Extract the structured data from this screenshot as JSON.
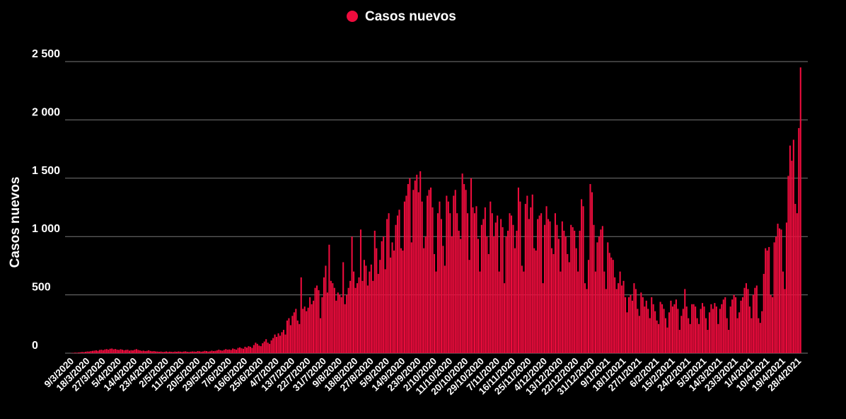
{
  "chart_data": {
    "type": "bar",
    "ylabel": "Casos nuevos",
    "categories": [
      "9/3/2020",
      null,
      null,
      null,
      null,
      null,
      null,
      null,
      null,
      "18/3/2020",
      null,
      null,
      null,
      null,
      null,
      null,
      null,
      null,
      "27/3/2020",
      null,
      null,
      null,
      null,
      null,
      null,
      null,
      null,
      "5/4/2020",
      null,
      null,
      null,
      null,
      null,
      null,
      null,
      null,
      "14/4/2020",
      null,
      null,
      null,
      null,
      null,
      null,
      null,
      null,
      "23/4/2020",
      null,
      null,
      null,
      null,
      null,
      null,
      null,
      null,
      "2/5/2020",
      null,
      null,
      null,
      null,
      null,
      null,
      null,
      null,
      "11/5/2020",
      null,
      null,
      null,
      null,
      null,
      null,
      null,
      null,
      "20/5/2020",
      null,
      null,
      null,
      null,
      null,
      null,
      null,
      null,
      "29/5/2020",
      null,
      null,
      null,
      null,
      null,
      null,
      null,
      null,
      "7/6/2020",
      null,
      null,
      null,
      null,
      null,
      null,
      null,
      null,
      "16/6/2020",
      null,
      null,
      null,
      null,
      null,
      null,
      null,
      null,
      "25/6/2020",
      null,
      null,
      null,
      null,
      null,
      null,
      null,
      null,
      "4/7/2020",
      null,
      null,
      null,
      null,
      null,
      null,
      null,
      null,
      "13/7/2020",
      null,
      null,
      null,
      null,
      null,
      null,
      null,
      null,
      "22/7/2020",
      null,
      null,
      null,
      null,
      null,
      null,
      null,
      null,
      "31/7/2020",
      null,
      null,
      null,
      null,
      null,
      null,
      null,
      null,
      "9/8/2020",
      null,
      null,
      null,
      null,
      null,
      null,
      null,
      null,
      "18/8/2020",
      null,
      null,
      null,
      null,
      null,
      null,
      null,
      null,
      "27/8/2020",
      null,
      null,
      null,
      null,
      null,
      null,
      null,
      null,
      "5/9/2020",
      null,
      null,
      null,
      null,
      null,
      null,
      null,
      null,
      "14/9/2020",
      null,
      null,
      null,
      null,
      null,
      null,
      null,
      null,
      "23/9/2020",
      null,
      null,
      null,
      null,
      null,
      null,
      null,
      null,
      "2/10/2020",
      null,
      null,
      null,
      null,
      null,
      null,
      null,
      null,
      "11/10/2020",
      null,
      null,
      null,
      null,
      null,
      null,
      null,
      null,
      "20/10/2020",
      null,
      null,
      null,
      null,
      null,
      null,
      null,
      null,
      "29/10/2020",
      null,
      null,
      null,
      null,
      null,
      null,
      null,
      null,
      "7/11/2020",
      null,
      null,
      null,
      null,
      null,
      null,
      null,
      null,
      "16/11/2020",
      null,
      null,
      null,
      null,
      null,
      null,
      null,
      null,
      "25/11/2020",
      null,
      null,
      null,
      null,
      null,
      null,
      null,
      null,
      "4/12/2020",
      null,
      null,
      null,
      null,
      null,
      null,
      null,
      null,
      "13/12/2020",
      null,
      null,
      null,
      null,
      null,
      null,
      null,
      null,
      "22/12/2020",
      null,
      null,
      null,
      null,
      null,
      null,
      null,
      null,
      "31/12/2020",
      null,
      null,
      null,
      null,
      null,
      null,
      null,
      null,
      "9/1/2021",
      null,
      null,
      null,
      null,
      null,
      null,
      null,
      null,
      "18/1/2021",
      null,
      null,
      null,
      null,
      null,
      null,
      null,
      null,
      "27/1/2021",
      null,
      null,
      null,
      null,
      null,
      null,
      null,
      null,
      null,
      "6/2/2021",
      null,
      null,
      null,
      null,
      null,
      null,
      null,
      null,
      "15/2/2021",
      null,
      null,
      null,
      null,
      null,
      null,
      null,
      null,
      "24/2/2021",
      null,
      null,
      null,
      null,
      null,
      null,
      null,
      null,
      "5/3/2021",
      null,
      null,
      null,
      null,
      null,
      null,
      null,
      null,
      "14/3/2021",
      null,
      null,
      null,
      null,
      null,
      null,
      null,
      null,
      "23/3/2021",
      null,
      null,
      null,
      null,
      null,
      null,
      null,
      null,
      "1/4/2021",
      null,
      null,
      null,
      null,
      null,
      null,
      null,
      null,
      "10/4/2021",
      null,
      null,
      null,
      null,
      null,
      null,
      null,
      null,
      "19/4/2021",
      null,
      null,
      null,
      null,
      null,
      null,
      null,
      null,
      "28/4/2021",
      null
    ],
    "series": [
      {
        "name": "Casos nuevos",
        "color": "#ee0c3d",
        "values": [
          2,
          3,
          5,
          4,
          6,
          8,
          10,
          9,
          12,
          15,
          14,
          18,
          20,
          22,
          25,
          20,
          28,
          30,
          26,
          32,
          35,
          30,
          38,
          40,
          33,
          36,
          30,
          28,
          34,
          30,
          25,
          28,
          30,
          22,
          26,
          24,
          30,
          35,
          28,
          24,
          20,
          22,
          18,
          20,
          25,
          19,
          16,
          18,
          15,
          14,
          12,
          14,
          10,
          12,
          15,
          11,
          13,
          12,
          10,
          14,
          12,
          15,
          13,
          11,
          14,
          16,
          12,
          10,
          13,
          15,
          14,
          12,
          18,
          16,
          13,
          15,
          20,
          18,
          14,
          16,
          22,
          18,
          20,
          24,
          30,
          25,
          22,
          28,
          35,
          30,
          32,
          28,
          40,
          35,
          30,
          45,
          50,
          42,
          38,
          55,
          48,
          60,
          55,
          45,
          70,
          90,
          80,
          65,
          60,
          85,
          100,
          120,
          90,
          80,
          110,
          130,
          160,
          140,
          170,
          150,
          180,
          200,
          160,
          280,
          300,
          240,
          320,
          350,
          380,
          280,
          250,
          650,
          380,
          400,
          360,
          390,
          480,
          420,
          450,
          560,
          580,
          540,
          300,
          480,
          650,
          750,
          520,
          930,
          620,
          600,
          560,
          450,
          520,
          500,
          480,
          780,
          420,
          500,
          560,
          620,
          1000,
          700,
          560,
          600,
          650,
          1060,
          620,
          800,
          750,
          580,
          700,
          760,
          620,
          1050,
          900,
          680,
          800,
          960,
          1000,
          720,
          1150,
          1200,
          820,
          950,
          880,
          1100,
          1180,
          1230,
          900,
          880,
          1300,
          1350,
          1450,
          1500,
          950,
          1400,
          1480,
          1530,
          1380,
          1560,
          1300,
          900,
          1000,
          1350,
          1400,
          1420,
          1250,
          850,
          700,
          1200,
          1300,
          1150,
          920,
          750,
          1350,
          1300,
          1200,
          1000,
          1350,
          1400,
          1200,
          1050,
          980,
          1540,
          1450,
          1400,
          1200,
          800,
          1500,
          1250,
          1200,
          1260,
          980,
          700,
          1100,
          1150,
          1250,
          1000,
          850,
          1300,
          1200,
          1000,
          1120,
          1180,
          700,
          1150,
          1080,
          600,
          1000,
          1050,
          1200,
          1180,
          1100,
          900,
          1050,
          1420,
          1300,
          750,
          700,
          1280,
          1350,
          1150,
          1250,
          1360,
          900,
          880,
          1150,
          1180,
          1200,
          600,
          1100,
          1260,
          1150,
          1130,
          900,
          850,
          1200,
          1100,
          980,
          700,
          1130,
          1050,
          1000,
          850,
          780,
          1100,
          1080,
          1050,
          900,
          700,
          1050,
          1320,
          1260,
          600,
          550,
          800,
          1450,
          1380,
          1100,
          700,
          950,
          1000,
          1060,
          1090,
          700,
          550,
          950,
          860,
          820,
          800,
          650,
          550,
          600,
          700,
          580,
          620,
          480,
          350,
          480,
          500,
          450,
          600,
          550,
          380,
          320,
          520,
          480,
          400,
          450,
          380,
          300,
          480,
          420,
          360,
          280,
          250,
          440,
          420,
          380,
          300,
          220,
          350,
          450,
          400,
          420,
          460,
          380,
          200,
          320,
          380,
          550,
          400,
          300,
          250,
          420,
          420,
          400,
          300,
          250,
          380,
          430,
          400,
          300,
          200,
          350,
          420,
          380,
          430,
          400,
          250,
          380,
          420,
          460,
          480,
          300,
          200,
          400,
          460,
          500,
          480,
          300,
          350,
          450,
          480,
          560,
          600,
          550,
          400,
          300,
          500,
          560,
          580,
          300,
          260,
          360,
          680,
          900,
          880,
          910,
          500,
          480,
          950,
          1000,
          1110,
          1070,
          1060,
          700,
          550,
          1120,
          1520,
          1780,
          1650,
          1830,
          1280,
          1200,
          1930,
          2450
        ]
      }
    ],
    "ylim": [
      0,
      2500
    ],
    "yticks": [
      0,
      500,
      {
        "value": 1000,
        "label": "1 000"
      },
      {
        "value": 1500,
        "label": "1 500"
      },
      {
        "value": 2000,
        "label": "2 000"
      },
      {
        "value": 2500,
        "label": "2 500"
      }
    ],
    "grid": true
  }
}
